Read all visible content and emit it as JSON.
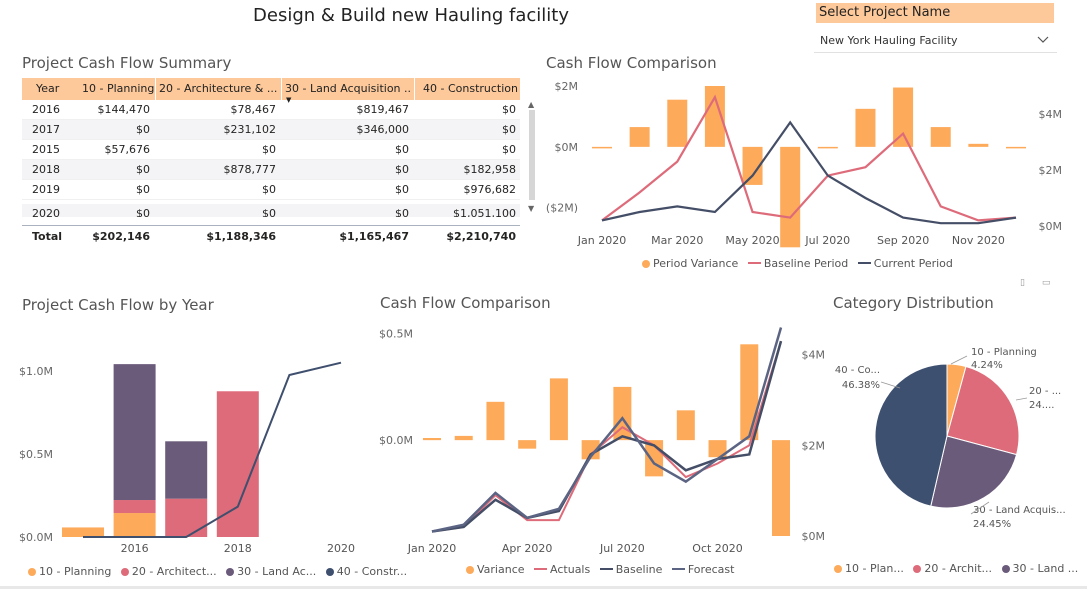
{
  "page": {
    "title": "Design & Build new Hauling facility"
  },
  "slicer": {
    "title": "Select Project Name",
    "value": "New York Hauling Facility"
  },
  "table": {
    "title": "Project Cash Flow Summary",
    "headers": [
      "Year",
      "10 - Planning",
      "20 - Architecture & ...",
      "30 - Land Acquisition ...",
      "40 - Construction"
    ],
    "rows": [
      [
        "2016",
        "$144,470",
        "$78,467",
        "$819,467",
        "$0"
      ],
      [
        "2017",
        "$0",
        "$231,102",
        "$346,000",
        "$0"
      ],
      [
        "2015",
        "$57,676",
        "$0",
        "$0",
        "$0"
      ],
      [
        "2018",
        "$0",
        "$878,777",
        "$0",
        "$182,958"
      ],
      [
        "2019",
        "$0",
        "$0",
        "$0",
        "$976,682"
      ],
      [
        "2020",
        "$0",
        "$0",
        "$0",
        "$1,051,100"
      ]
    ],
    "total": [
      "Total",
      "$202,146",
      "$1,188,346",
      "$1,165,467",
      "$2,210,740"
    ]
  },
  "colors": {
    "planning": "#fdaa5a",
    "architecture": "#de6b7a",
    "land": "#6b5b7b",
    "construction": "#3f4f6e",
    "baseline": "#444e66",
    "header_bg": "#fdc99b",
    "pie_construction": "#3e5070"
  },
  "chart_data": [
    {
      "type": "bar+line",
      "title": "Cash Flow Comparison",
      "categories": [
        "Jan 2020",
        "Feb 2020",
        "Mar 2020",
        "Apr 2020",
        "May 2020",
        "Jun 2020",
        "Jul 2020",
        "Aug 2020",
        "Sep 2020",
        "Oct 2020",
        "Nov 2020",
        "Dec 2020"
      ],
      "xtick_labels": [
        "Jan 2020",
        "Mar 2020",
        "May 2020",
        "Jul 2020",
        "Sep 2020",
        "Nov 2020"
      ],
      "y_left": {
        "ylim": [
          -2.6,
          2.0
        ],
        "ticks": [
          2,
          0,
          -2
        ],
        "tick_labels": [
          "$2M",
          "$0M",
          "($2M)"
        ]
      },
      "y_right": {
        "ylim": [
          0,
          5
        ],
        "ticks": [
          4,
          2,
          0
        ],
        "tick_labels": [
          "$4M",
          "$2M",
          "$0M"
        ]
      },
      "series": [
        {
          "name": "Period Variance",
          "kind": "bar",
          "axis": "left",
          "values": [
            -0.05,
            0.65,
            1.55,
            2.0,
            -1.25,
            -3.3,
            -0.05,
            1.25,
            1.95,
            0.65,
            0.1,
            -0.05
          ]
        },
        {
          "name": "Baseline Period",
          "kind": "line",
          "axis": "right",
          "values": [
            0.2,
            1.2,
            2.3,
            4.6,
            0.5,
            0.3,
            1.8,
            2.1,
            3.3,
            0.7,
            0.2,
            0.3
          ]
        },
        {
          "name": "Current Period",
          "kind": "line",
          "axis": "right",
          "values": [
            0.2,
            0.5,
            0.7,
            0.5,
            1.8,
            3.7,
            1.8,
            1.0,
            0.3,
            0.1,
            0.1,
            0.3
          ]
        }
      ],
      "legend": [
        "Period Variance",
        "Baseline Period",
        "Current Period"
      ]
    },
    {
      "type": "stacked-bar+line",
      "title": "Project Cash Flow by Year",
      "categories": [
        "2015",
        "2016",
        "2017",
        "2018",
        "2019",
        "2020"
      ],
      "xtick_labels": [
        "2016",
        "2018",
        "2020"
      ],
      "ylim": [
        0,
        1.2
      ],
      "y_ticks": [
        0,
        0.5,
        1.0
      ],
      "y_tick_labels": [
        "$0.0M",
        "$0.5M",
        "$1.0M"
      ],
      "series": [
        {
          "name": "10 - Planning",
          "kind": "bar",
          "values": [
            0.05767,
            0.14447,
            0,
            0,
            0,
            0
          ]
        },
        {
          "name": "20 - Architecture & Design",
          "kind": "bar",
          "values": [
            0,
            0.07847,
            0.2311,
            0.87878,
            0,
            0
          ]
        },
        {
          "name": "30 - Land Acquisition",
          "kind": "bar",
          "values": [
            0,
            0.81947,
            0.346,
            0,
            0,
            0
          ]
        },
        {
          "name": "40 - Construction",
          "kind": "line",
          "values": [
            0,
            0,
            0,
            0.18296,
            0.97668,
            1.0511
          ]
        }
      ],
      "legend": [
        "10 - Planning",
        "20 - Architect...",
        "30 - Land Ac...",
        "40 - Constr..."
      ]
    },
    {
      "type": "bar+line",
      "title": "Cash Flow Comparison",
      "categories": [
        "Jan 2020",
        "Feb 2020",
        "Mar 2020",
        "Apr 2020",
        "May 2020",
        "Jun 2020",
        "Jul 2020",
        "Aug 2020",
        "Sep 2020",
        "Oct 2020",
        "Nov 2020",
        "Dec 2020"
      ],
      "xtick_labels": [
        "Jan 2020",
        "Apr 2020",
        "Jul 2020",
        "Oct 2020"
      ],
      "y_left": {
        "ylim": [
          -0.45,
          0.55
        ],
        "ticks": [
          0.5,
          0.0
        ],
        "tick_labels": [
          "$0.5M",
          "$0.0M"
        ]
      },
      "y_right": {
        "ylim": [
          0,
          4.7
        ],
        "ticks": [
          4,
          2,
          0
        ],
        "tick_labels": [
          "$4M",
          "$2M",
          "$0M"
        ]
      },
      "series": [
        {
          "name": "Variance",
          "kind": "bar",
          "axis": "left",
          "values": [
            0.01,
            0.02,
            0.18,
            -0.04,
            0.29,
            -0.09,
            0.25,
            -0.17,
            0.14,
            -0.08,
            0.45,
            -0.45
          ]
        },
        {
          "name": "Actuals",
          "kind": "line",
          "axis": "right",
          "values": [
            0.1,
            0.2,
            0.9,
            0.35,
            0.35,
            1.8,
            2.4,
            2.0,
            1.3,
            1.6,
            2.0,
            4.3
          ]
        },
        {
          "name": "Baseline",
          "kind": "line",
          "axis": "right",
          "values": [
            0.1,
            0.2,
            0.8,
            0.4,
            0.55,
            1.8,
            2.2,
            2.0,
            1.45,
            1.7,
            1.8,
            4.3
          ]
        },
        {
          "name": "Forecast",
          "kind": "line",
          "axis": "right",
          "values": [
            0.1,
            0.25,
            0.95,
            0.4,
            0.6,
            1.75,
            2.6,
            1.6,
            1.2,
            1.7,
            2.2,
            4.6
          ]
        }
      ],
      "legend": [
        "Variance",
        "Actuals",
        "Baseline",
        "Forecast"
      ]
    },
    {
      "type": "pie",
      "title": "Category Distribution",
      "slices": [
        {
          "name": "10 - Planning",
          "value": 4.24,
          "label_name": "10 - Planning",
          "label_pct": "4.24%"
        },
        {
          "name": "20 - Architecture & Design",
          "value": 24.93,
          "label_name": "20 - ...",
          "label_pct": "24...."
        },
        {
          "name": "30 - Land Acquisition",
          "value": 24.45,
          "label_name": "30 - Land Acquis...",
          "label_pct": "24.45%"
        },
        {
          "name": "40 - Construction",
          "value": 46.38,
          "label_name": "40 - Co...",
          "label_pct": "46.38%"
        }
      ],
      "legend": [
        "10 - Plan...",
        "20 - Archit...",
        "30 - Land ..."
      ]
    }
  ]
}
